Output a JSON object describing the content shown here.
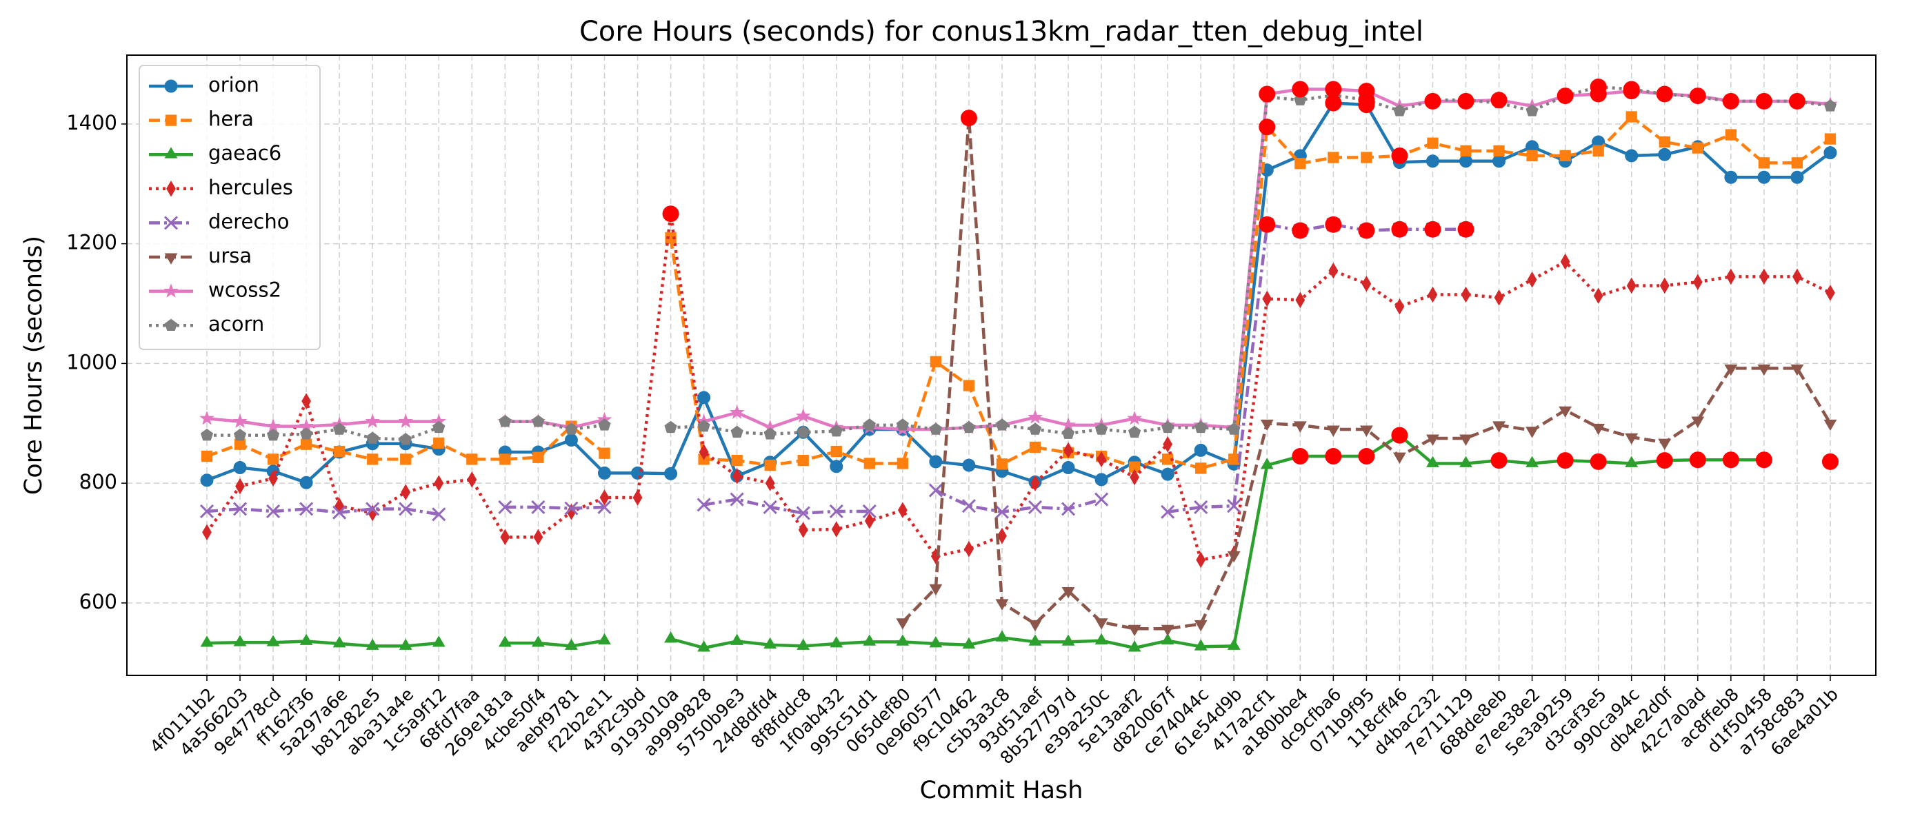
{
  "chart_data": {
    "type": "line",
    "title": "Core Hours (seconds) for conus13km_radar_tten_debug_intel",
    "x_label": "Commit Hash",
    "y_label": "Core Hours (seconds)",
    "categories": [
      "4f0111b2",
      "4a566203",
      "9e4778cd",
      "ff162f36",
      "5a297a6e",
      "b81282e5",
      "aba31a4e",
      "1c5a9f12",
      "68fd7faa",
      "269e181a",
      "4cbe50f4",
      "aebf9781",
      "f22b2e11",
      "43f2c3bd",
      "9193010a",
      "a9999828",
      "5750b9e3",
      "24d8dfd4",
      "8f8fddc8",
      "1f0ab432",
      "995c51d1",
      "065def80",
      "0e960577",
      "f9c10462",
      "c5b3a3c8",
      "93d51aef",
      "8b527797d",
      "e39a250c",
      "5e13aaf2",
      "d820067f",
      "ce74044c",
      "61e54d9b",
      "417a2cf1",
      "a180bbe4",
      "dc9cfba6",
      "071b9f95",
      "118cff46",
      "d4bac232",
      "7e711129",
      "688de8eb",
      "e7ee38e2",
      "5e3a9259",
      "d3caf3e5",
      "990ca94c",
      "db4e2d0f",
      "42c7a0ad",
      "ac8ffeb8",
      "d1f50458",
      "a758c883",
      "6ae4a01b"
    ],
    "ylim": [
      479,
      1515
    ],
    "yticks": [
      600,
      800,
      1000,
      1200,
      1400
    ],
    "grid": true,
    "legend": "upper left",
    "highlight_color": "#ff0000",
    "series": [
      {
        "name": "orion",
        "color": "#1f77b4",
        "linestyle": "solid",
        "marker": "circle",
        "values": [
          805,
          826,
          820,
          801,
          852,
          866,
          866,
          857,
          null,
          852,
          852,
          872,
          817,
          817,
          816,
          943,
          812,
          835,
          885,
          828,
          890,
          890,
          836,
          830,
          820,
          802,
          826,
          806,
          835,
          815,
          855,
          832,
          1323,
          1347,
          1435,
          1432,
          1336,
          1338,
          1338,
          1338,
          1362,
          1338,
          1370,
          1347,
          1349,
          1362,
          1311,
          1311,
          1311,
          1352
        ],
        "highlighted": [
          34,
          35
        ]
      },
      {
        "name": "hera",
        "color": "#ff7f0e",
        "linestyle": "dashed",
        "marker": "square",
        "values": [
          845,
          865,
          840,
          865,
          853,
          840,
          840,
          867,
          840,
          840,
          843,
          895,
          850,
          null,
          1210,
          840,
          838,
          830,
          838,
          853,
          833,
          833,
          1003,
          963,
          832,
          860,
          851,
          845,
          827,
          840,
          825,
          840,
          1395,
          1334,
          1344,
          1344,
          1347,
          1368,
          1355,
          1355,
          1347,
          1347,
          1355,
          1412,
          1370,
          1360,
          1382,
          1335,
          1335,
          1375
        ],
        "highlighted": [
          32,
          36
        ]
      },
      {
        "name": "gaeac6",
        "color": "#2ca02c",
        "linestyle": "solid",
        "marker": "triangle",
        "values": [
          533,
          534,
          534,
          536,
          532,
          528,
          528,
          533,
          null,
          533,
          533,
          528,
          537,
          null,
          540,
          525,
          536,
          530,
          528,
          532,
          535,
          535,
          532,
          530,
          542,
          535,
          535,
          537,
          525,
          537,
          527,
          528,
          830,
          845,
          845,
          845,
          880,
          833,
          833,
          838,
          833,
          838,
          836,
          833,
          838,
          839,
          839,
          839,
          null,
          836
        ],
        "highlighted": [
          33,
          34,
          35,
          36,
          39,
          41,
          42,
          44,
          45,
          46,
          47,
          49
        ]
      },
      {
        "name": "hercules",
        "color": "#d62728",
        "linestyle": "dotted",
        "marker": "diamond",
        "values": [
          718,
          795,
          808,
          937,
          762,
          750,
          785,
          800,
          806,
          710,
          710,
          752,
          776,
          776,
          1250,
          852,
          812,
          800,
          722,
          723,
          737,
          755,
          678,
          690,
          712,
          800,
          855,
          840,
          810,
          865,
          672,
          682,
          1108,
          1106,
          1155,
          1133,
          1095,
          1115,
          1115,
          1110,
          1140,
          1170,
          1113,
          1130,
          1130,
          1136,
          1145,
          1145,
          1145,
          1118
        ],
        "highlighted": [
          14
        ]
      },
      {
        "name": "derecho",
        "color": "#9467bd",
        "linestyle": "dashdot",
        "marker": "x",
        "values": [
          753,
          757,
          753,
          757,
          751,
          757,
          757,
          748,
          null,
          760,
          760,
          758,
          760,
          null,
          null,
          764,
          773,
          760,
          750,
          753,
          753,
          null,
          788,
          762,
          752,
          760,
          757,
          773,
          null,
          752,
          760,
          762,
          1232,
          1222,
          1232,
          1222,
          1224,
          1224,
          1224,
          null,
          null,
          null,
          null,
          null,
          null,
          null,
          null,
          null,
          null,
          null
        ],
        "highlighted": [
          32,
          33,
          34,
          35,
          36,
          37,
          38
        ]
      },
      {
        "name": "ursa",
        "color": "#8c564b",
        "linestyle": "dashed",
        "marker": "triangle-down",
        "values": [
          null,
          null,
          null,
          null,
          null,
          null,
          null,
          null,
          null,
          null,
          null,
          null,
          null,
          null,
          null,
          null,
          null,
          null,
          null,
          null,
          null,
          568,
          625,
          1410,
          600,
          565,
          620,
          568,
          557,
          557,
          565,
          680,
          900,
          897,
          890,
          890,
          845,
          875,
          875,
          897,
          888,
          922,
          893,
          877,
          868,
          905,
          992,
          992,
          992,
          900
        ],
        "highlighted": [
          23
        ]
      },
      {
        "name": "wcoss2",
        "color": "#e377c2",
        "linestyle": "solid",
        "marker": "star",
        "values": [
          908,
          903,
          895,
          895,
          898,
          903,
          903,
          903,
          null,
          903,
          903,
          893,
          906,
          null,
          null,
          903,
          918,
          893,
          912,
          893,
          893,
          890,
          890,
          893,
          897,
          910,
          897,
          897,
          908,
          897,
          897,
          893,
          1450,
          1458,
          1458,
          1455,
          1430,
          1438,
          1438,
          1440,
          1430,
          1447,
          1450,
          1455,
          1450,
          1447,
          1438,
          1438,
          1438,
          1433
        ],
        "highlighted": [
          32,
          33,
          34,
          35,
          37,
          38,
          39,
          41,
          42,
          43,
          44,
          45,
          46,
          47,
          48
        ]
      },
      {
        "name": "acorn",
        "color": "#7f7f7f",
        "linestyle": "dotted",
        "marker": "pentagon",
        "values": [
          880,
          880,
          880,
          882,
          890,
          875,
          873,
          893,
          null,
          903,
          903,
          890,
          897,
          null,
          893,
          895,
          885,
          882,
          885,
          887,
          897,
          897,
          890,
          893,
          897,
          890,
          883,
          890,
          885,
          893,
          893,
          890,
          1445,
          1440,
          1448,
          1440,
          1422,
          1440,
          1440,
          1435,
          1422,
          1447,
          1462,
          1458,
          1450,
          1445,
          1438,
          1438,
          1438,
          1430
        ],
        "highlighted": [
          35,
          42,
          43
        ]
      }
    ]
  }
}
